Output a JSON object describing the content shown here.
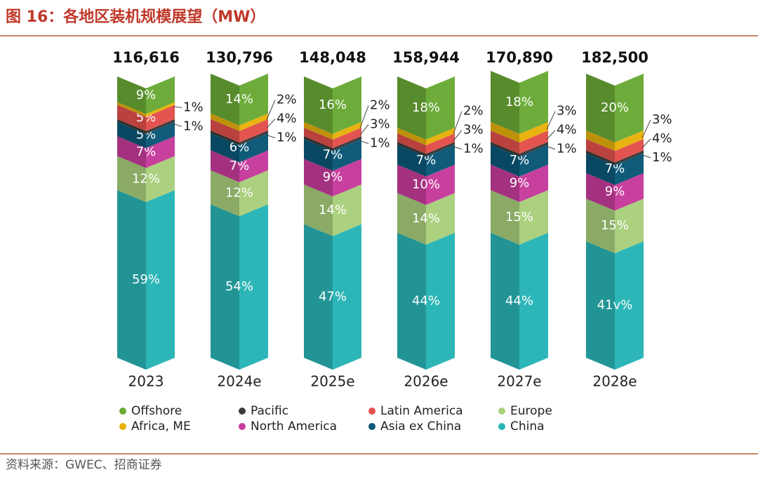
{
  "chart_data": {
    "type": "stacked-bar-3d",
    "title": "图 16：各地区装机规模展望（MW）",
    "source": "资料来源：GWEC、招商证券",
    "categories": [
      "2023",
      "2024e",
      "2025e",
      "2026e",
      "2027e",
      "2028e"
    ],
    "totals": {
      "values": [
        116616,
        130796,
        148048,
        158944,
        170890,
        182500
      ],
      "value_labels": [
        "116,616",
        "130,796",
        "148,048",
        "158,944",
        "170,890",
        "182,500"
      ]
    },
    "series": [
      {
        "name": "Offshore",
        "color": "#6aaa36",
        "values": [
          9,
          14,
          16,
          18,
          18,
          20
        ],
        "value_labels": [
          "9%",
          "14%",
          "16%",
          "18%",
          "18%",
          "20%"
        ]
      },
      {
        "name": "Pacific",
        "color": "#3a3a3a",
        "values": [
          1,
          1,
          1,
          1,
          1,
          1
        ],
        "value_labels": [
          "1%",
          "1%",
          "1%",
          "1%",
          "1%",
          "1%"
        ]
      },
      {
        "name": "Latin America",
        "color": "#e2504c",
        "values": [
          5,
          4,
          3,
          3,
          4,
          4
        ],
        "value_labels": [
          "5%",
          "4%",
          "3%",
          "3%",
          "4%",
          "4%"
        ]
      },
      {
        "name": "Europe",
        "color": "#a9cf7c",
        "values": [
          12,
          12,
          14,
          14,
          15,
          15
        ],
        "value_labels": [
          "12%",
          "12%",
          "14%",
          "14%",
          "15%",
          "15%"
        ]
      },
      {
        "name": "Africa, ME",
        "color": "#e8b10c",
        "values": [
          1,
          2,
          2,
          2,
          3,
          3
        ],
        "value_labels": [
          "1%",
          "2%",
          "2%",
          "2%",
          "3%",
          "3%"
        ]
      },
      {
        "name": "North America",
        "color": "#c73c9c",
        "values": [
          7,
          7,
          9,
          10,
          9,
          9
        ],
        "value_labels": [
          "7%",
          "7%",
          "9%",
          "10%",
          "9%",
          "9%"
        ]
      },
      {
        "name": "Asia ex China",
        "color": "#0b5877",
        "values": [
          5,
          6,
          7,
          7,
          7,
          7
        ],
        "value_labels": [
          "5%",
          "6%",
          "7%",
          "7%",
          "7%",
          "7%"
        ]
      },
      {
        "name": "China",
        "color": "#29b5b6",
        "values": [
          59,
          54,
          47,
          44,
          44,
          41
        ],
        "value_labels": [
          "59%",
          "54%",
          "47%",
          "44%",
          "44%",
          "41v%"
        ]
      }
    ]
  }
}
